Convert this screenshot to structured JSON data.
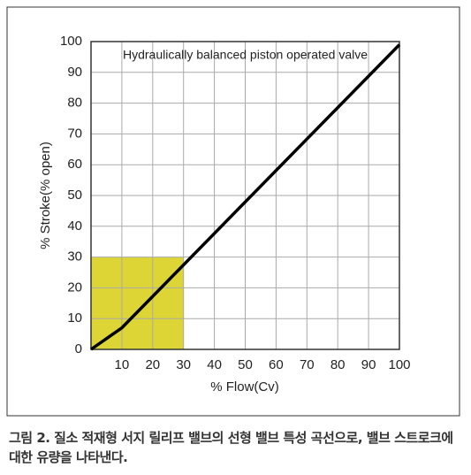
{
  "chart_data": {
    "type": "line",
    "annotation": "Hydraulically balanced piston operated valve",
    "x_label": "% Flow(Cv)",
    "y_label": "% Stroke(% open)",
    "x": [
      0,
      10,
      100
    ],
    "values": [
      0,
      7,
      99
    ],
    "color": "#000000",
    "xlim": [
      0,
      100
    ],
    "xticks": [
      10,
      20,
      30,
      40,
      50,
      60,
      70,
      80,
      90,
      100
    ],
    "ylim": [
      0,
      100
    ],
    "yticks": [
      0,
      10,
      20,
      30,
      40,
      50,
      60,
      70,
      80,
      90,
      100
    ],
    "grid": true,
    "highlight": {
      "xlim": [
        0,
        30
      ],
      "ylim": [
        0,
        30
      ],
      "color": "#ddd535"
    }
  },
  "caption": "그림 2. 질소 적재형 서지 릴리프 밸브의 선형 밸브 특성 곡선으로, 밸브 스트로크에 대한 유량을 나타낸다."
}
